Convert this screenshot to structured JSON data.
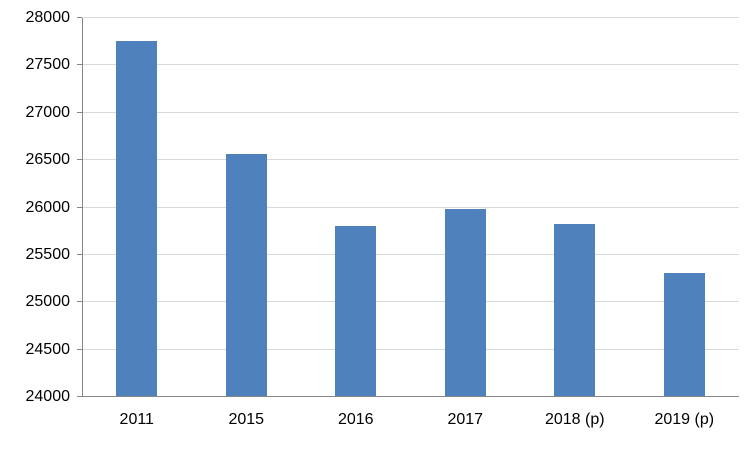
{
  "chart_data": {
    "type": "bar",
    "categories": [
      "2011",
      "2015",
      "2016",
      "2017",
      "2018 (p)",
      "2019 (p)"
    ],
    "values": [
      27760,
      26560,
      25800,
      25980,
      25830,
      25310
    ],
    "title": "",
    "xlabel": "",
    "ylabel": "",
    "ylim": [
      24000,
      28000
    ],
    "y_ticks": [
      24000,
      24500,
      25000,
      25500,
      26000,
      26500,
      27000,
      27500,
      28000
    ],
    "grid": true,
    "legend": "none",
    "colors": {
      "bar": "#4f81bd",
      "gridline": "#d9d9d9",
      "axis": "#868686",
      "text": "#000000"
    }
  }
}
